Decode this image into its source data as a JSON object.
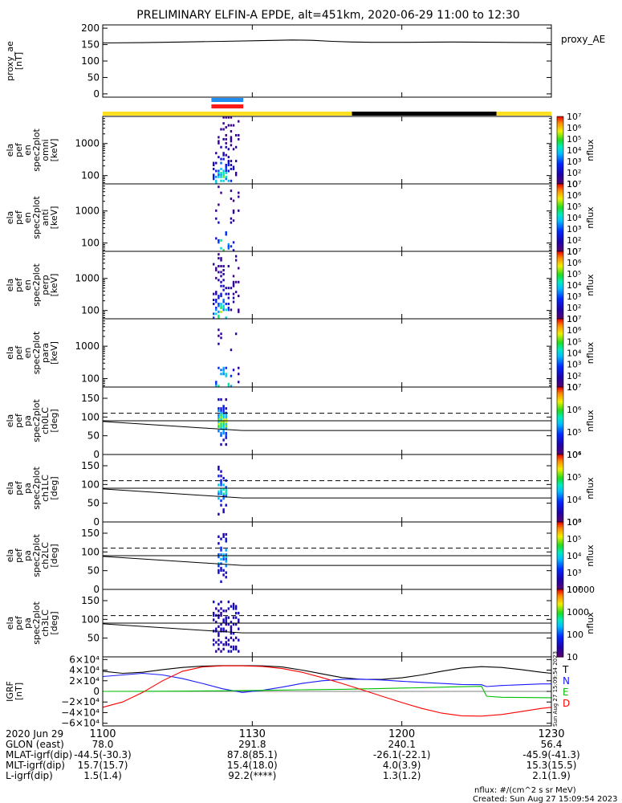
{
  "title": "PRELIMINARY ELFIN-A EPDE, alt=451km, 2020-06-29 11:00 to 12:30",
  "time_range_min": [
    0,
    90
  ],
  "time_ticks": [
    {
      "t": 0,
      "label": "1100"
    },
    {
      "t": 30,
      "label": "1130"
    },
    {
      "t": 60,
      "label": "1200"
    },
    {
      "t": 90,
      "label": "1230"
    }
  ],
  "panels": [
    {
      "id": "proxy_ae",
      "kind": "line",
      "ylabel": [
        "proxy_ae",
        "[nT]"
      ],
      "right_label": "proxy_AE",
      "ylim": [
        -10,
        210
      ],
      "yticks": [
        {
          "v": 0,
          "label": "0"
        },
        {
          "v": 50,
          "label": "50"
        },
        {
          "v": 100,
          "label": "100"
        },
        {
          "v": 150,
          "label": "150"
        },
        {
          "v": 200,
          "label": "200"
        }
      ],
      "series": [
        {
          "color": "#000000",
          "t": [
            0,
            8,
            16,
            24,
            32,
            38,
            42,
            46,
            50,
            54,
            60,
            70,
            80,
            90
          ],
          "v": [
            155,
            156,
            158,
            160,
            162,
            164,
            163,
            160,
            158,
            157,
            157,
            158,
            157,
            156
          ]
        }
      ]
    },
    {
      "id": "en_omni",
      "kind": "energy",
      "ylabel": [
        "ela",
        "pef",
        "en",
        "spec2plot",
        "omni",
        "[keV]"
      ],
      "yticks": [
        {
          "v": 100,
          "label": "100"
        },
        {
          "v": 1000,
          "label": "1000"
        }
      ],
      "ylim_keV": [
        55,
        7000
      ],
      "cbar": {
        "zlabel": "nflux",
        "log_min": 1,
        "log_max": 7,
        "ticks": [
          "10",
          "10²",
          "10³",
          "10⁴",
          "10⁵",
          "10⁶",
          "10⁷"
        ]
      },
      "burst_min": [
        22,
        27.5
      ],
      "intensity": 1.0
    },
    {
      "id": "en_anti",
      "kind": "energy",
      "ylabel": [
        "ela",
        "pef",
        "en",
        "spec2plot",
        "anti",
        "[keV]"
      ],
      "yticks": [
        {
          "v": 100,
          "label": "100"
        },
        {
          "v": 1000,
          "label": "1000"
        }
      ],
      "ylim_keV": [
        55,
        7000
      ],
      "cbar": {
        "zlabel": "nflux",
        "log_min": 1,
        "log_max": 7,
        "ticks": [
          "10",
          "10²",
          "10³",
          "10⁴",
          "10⁵",
          "10⁶",
          "10⁷"
        ]
      },
      "burst_min": [
        22.5,
        27.5
      ],
      "intensity": 0.45
    },
    {
      "id": "en_perp",
      "kind": "energy",
      "ylabel": [
        "ela",
        "pef",
        "en",
        "spec2plot",
        "perp",
        "[keV]"
      ],
      "yticks": [
        {
          "v": 100,
          "label": "100"
        },
        {
          "v": 1000,
          "label": "1000"
        }
      ],
      "ylim_keV": [
        55,
        7000
      ],
      "cbar": {
        "zlabel": "nflux",
        "log_min": 1,
        "log_max": 7,
        "ticks": [
          "10",
          "10²",
          "10³",
          "10⁴",
          "10⁵",
          "10⁶",
          "10⁷"
        ]
      },
      "burst_min": [
        22,
        27.5
      ],
      "intensity": 1.0
    },
    {
      "id": "en_para",
      "kind": "energy",
      "ylabel": [
        "ela",
        "pef",
        "en",
        "spec2plot",
        "para",
        "[keV]"
      ],
      "yticks": [
        {
          "v": 100,
          "label": "100"
        },
        {
          "v": 1000,
          "label": "1000"
        }
      ],
      "ylim_keV": [
        55,
        7000
      ],
      "cbar": {
        "zlabel": "nflux",
        "log_min": 1,
        "log_max": 7,
        "ticks": [
          "10",
          "10²",
          "10³",
          "10⁴",
          "10⁵",
          "10⁶",
          "10⁷"
        ]
      },
      "burst_min": [
        22.5,
        27.5
      ],
      "intensity": 0.45
    },
    {
      "id": "pa_ch0",
      "kind": "pa",
      "ylabel": [
        "ela",
        "pef",
        "pa",
        "spec2plot",
        "ch0LC",
        "[deg]"
      ],
      "ylim": [
        0,
        180
      ],
      "yticks": [
        {
          "v": 0,
          "label": "0"
        },
        {
          "v": 50,
          "label": "50"
        },
        {
          "v": 100,
          "label": "100"
        },
        {
          "v": 150,
          "label": "150"
        }
      ],
      "cbar": {
        "zlabel": "nflux",
        "log_min": 3.5,
        "log_max": 7,
        "ticks": [
          "10⁴",
          "10⁵",
          "10⁶",
          "10⁷"
        ]
      },
      "burst_min": [
        23,
        25
      ],
      "intensity": 1.0
    },
    {
      "id": "pa_ch1",
      "kind": "pa",
      "ylabel": [
        "ela",
        "pef",
        "pa",
        "spec2plot",
        "ch1LC",
        "[deg]"
      ],
      "ylim": [
        0,
        180
      ],
      "yticks": [
        {
          "v": 0,
          "label": "0"
        },
        {
          "v": 50,
          "label": "50"
        },
        {
          "v": 100,
          "label": "100"
        },
        {
          "v": 150,
          "label": "150"
        }
      ],
      "cbar": {
        "zlabel": "nflux",
        "log_min": 3,
        "log_max": 6.7,
        "ticks": [
          "10³",
          "10⁴",
          "10⁵",
          "10⁶"
        ]
      },
      "burst_min": [
        23,
        25
      ],
      "intensity": 0.7
    },
    {
      "id": "pa_ch2",
      "kind": "pa",
      "ylabel": [
        "ela",
        "pef",
        "pa",
        "spec2plot",
        "ch2LC",
        "[deg]"
      ],
      "ylim": [
        0,
        180
      ],
      "yticks": [
        {
          "v": 0,
          "label": "0"
        },
        {
          "v": 50,
          "label": "50"
        },
        {
          "v": 100,
          "label": "100"
        },
        {
          "v": 150,
          "label": "150"
        }
      ],
      "cbar": {
        "zlabel": "nflux",
        "log_min": 2,
        "log_max": 5.7,
        "ticks": [
          "10²",
          "10³",
          "10⁴",
          "10⁵",
          "10⁶"
        ]
      },
      "burst_min": [
        23,
        25
      ],
      "intensity": 0.6
    },
    {
      "id": "pa_ch3",
      "kind": "pa",
      "ylabel": [
        "ela",
        "pef",
        "pa",
        "spec2plot",
        "ch3LC",
        "[deg]"
      ],
      "ylim": [
        0,
        180
      ],
      "yticks": [
        {
          "v": 50,
          "label": "50"
        },
        {
          "v": 100,
          "label": "100"
        },
        {
          "v": 150,
          "label": "150"
        }
      ],
      "cbar": {
        "zlabel": "nflux",
        "log_min": 1,
        "log_max": 4,
        "ticks": [
          "10",
          "100",
          "1000",
          "10000"
        ]
      },
      "burst_min": [
        22,
        27.5
      ],
      "intensity": 0.25
    },
    {
      "id": "igrf",
      "kind": "line",
      "ylabel": [
        "IGRF",
        "[nT]"
      ],
      "ylim": [
        -65000,
        65000
      ],
      "yticks": [
        {
          "v": 60000,
          "label": "6×10⁴"
        },
        {
          "v": 40000,
          "label": "4×10⁴"
        },
        {
          "v": 20000,
          "label": "2×10⁴"
        },
        {
          "v": 0,
          "label": "0"
        },
        {
          "v": -20000,
          "label": "−2×10⁴"
        },
        {
          "v": -40000,
          "label": "−4×10⁴"
        },
        {
          "v": -60000,
          "label": "−6×10⁴"
        }
      ],
      "legend": [
        {
          "label": "T",
          "color": "#000000"
        },
        {
          "label": "N",
          "color": "#1a1aff"
        },
        {
          "label": "E",
          "color": "#00c000"
        },
        {
          "label": "D",
          "color": "#ff0000"
        }
      ],
      "series": [
        {
          "name": "T",
          "color": "#000000",
          "t": [
            0,
            4,
            8,
            12,
            16,
            20,
            24,
            28,
            32,
            36,
            40,
            44,
            48,
            52,
            56,
            60,
            64,
            68,
            72,
            76,
            80,
            84,
            88,
            90
          ],
          "v": [
            38000,
            34000,
            36000,
            41000,
            45000,
            47500,
            48500,
            48500,
            48000,
            46000,
            40000,
            33000,
            26000,
            22500,
            22500,
            25500,
            31000,
            38000,
            44000,
            46500,
            45000,
            41000,
            36000,
            34000
          ]
        },
        {
          "name": "N",
          "color": "#1a1aff",
          "t": [
            0,
            4,
            8,
            12,
            16,
            20,
            24,
            28,
            32,
            36,
            40,
            44,
            48,
            52,
            56,
            60,
            64,
            68,
            72,
            76,
            77,
            80,
            84,
            88,
            90
          ],
          "v": [
            28000,
            31000,
            34000,
            31000,
            24000,
            15000,
            5000,
            -2000,
            2000,
            8000,
            15000,
            20000,
            22500,
            23000,
            21500,
            19000,
            17000,
            15000,
            13000,
            12500,
            9000,
            11000,
            12500,
            14000,
            14000
          ]
        },
        {
          "name": "E",
          "color": "#00c000",
          "t": [
            0,
            8,
            16,
            24,
            32,
            40,
            48,
            56,
            64,
            70,
            76,
            77,
            80,
            84,
            90
          ],
          "v": [
            0,
            200,
            500,
            1000,
            2000,
            3000,
            4000,
            5500,
            7000,
            8500,
            9500,
            -9000,
            -11000,
            -11500,
            -12000
          ]
        },
        {
          "name": "D",
          "color": "#ff0000",
          "t": [
            0,
            4,
            8,
            12,
            16,
            20,
            24,
            28,
            32,
            36,
            40,
            44,
            48,
            52,
            56,
            60,
            64,
            68,
            72,
            76,
            80,
            84,
            88,
            90
          ],
          "v": [
            -30000,
            -20000,
            -2000,
            20000,
            38000,
            46000,
            48000,
            48000,
            47000,
            43000,
            36000,
            26000,
            15000,
            3000,
            -9000,
            -21000,
            -32000,
            -41000,
            -46000,
            -46500,
            -43500,
            -38000,
            -32000,
            -30000
          ]
        }
      ]
    }
  ],
  "flags": {
    "status_bar": [
      {
        "t0": 0,
        "t1": 50,
        "color": "#ffe020"
      },
      {
        "t0": 50,
        "t1": 79,
        "color": "#000000"
      },
      {
        "t0": 79,
        "t1": 90,
        "color": "#ffe020"
      }
    ],
    "burst_marks": [
      {
        "t0": 21.8,
        "t1": 28.2,
        "color": "#1e8cf0"
      },
      {
        "t0": 21.8,
        "t1": 28.2,
        "color": "#ff1a1a"
      }
    ]
  },
  "pa_refs": {
    "dashed_deg": 110,
    "solid_deg": 90,
    "line_start_deg": 88,
    "line_end_deg": 64
  },
  "ephemeris": {
    "row_labels": [
      "2020 Jun 29",
      "GLON (east)",
      "MLAT-igrf(dip)",
      "MLT-igrf(dip)",
      "L-igrf(dip)"
    ],
    "columns": [
      {
        "time": "1100",
        "values": [
          "78.0",
          "-44.5(-30.3)",
          "15.7(15.7)",
          "1.5(1.4)"
        ]
      },
      {
        "time": "1130",
        "values": [
          "291.8",
          "87.8(85.1)",
          "15.4(18.0)",
          "92.2(****)"
        ]
      },
      {
        "time": "1200",
        "values": [
          "240.1",
          "-26.1(-22.1)",
          "4.0(3.9)",
          "1.3(1.2)"
        ]
      },
      {
        "time": "1230",
        "values": [
          "56.4",
          "-45.9(-41.3)",
          "15.3(15.5)",
          "2.1(1.9)"
        ]
      }
    ]
  },
  "footer": {
    "units": "nflux: #/(cm^2 s sr MeV)",
    "created": "Created: Sun Aug 27 15:09:54 2023",
    "side_stamp": "Sun Aug 27 15:09:54 2023"
  }
}
